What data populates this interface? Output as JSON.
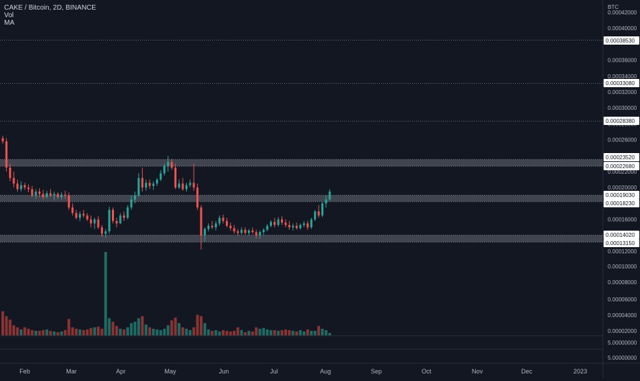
{
  "header": {
    "symbol_line": "CAKE / Bitcoin, 2D, BINANCE",
    "indicator_vol": "Vol",
    "indicator_ma": "MA"
  },
  "colors": {
    "background": "#131722",
    "up": "#26a69a",
    "down": "#ef5350",
    "vol_up": "#1f6b64",
    "vol_down": "#8a3333",
    "zone": "#9598a1",
    "grid_dash": "#9598a1",
    "axis_text": "#b2b5be",
    "label_bg": "#ffffff",
    "label_text": "#131722"
  },
  "chart_data": [
    {
      "type": "candlestick",
      "title": "CAKE / Bitcoin, 2D, BINANCE",
      "price_axis_unit": "BTC",
      "x_ticks": [
        "Feb",
        "Mar",
        "Apr",
        "May",
        "Jun",
        "Jul",
        "Aug",
        "Sep",
        "Oct",
        "Nov",
        "Dec",
        "2023"
      ],
      "y_ticks": [
        "0.00042000",
        "0.00040000",
        "0.00036000",
        "0.00034000",
        "0.00032000",
        "0.00030000",
        "0.00028000",
        "0.00026000",
        "0.00022000",
        "0.00020000",
        "0.00016000",
        "0.00012000"
      ],
      "ylim": [
        0.00011,
        0.00043
      ],
      "level_lines": [
        0.0003853,
        0.0003308,
        0.0002838
      ],
      "zones": [
        {
          "top": 0.0002352,
          "bottom": 0.0002268
        },
        {
          "top": 0.0001903,
          "bottom": 0.0001823
        },
        {
          "top": 0.0001402,
          "bottom": 0.0001315
        }
      ],
      "price_labels": [
        "0.00038530",
        "0.00033080",
        "0.00028380",
        "0.00023520",
        "0.00022680",
        "0.00019030",
        "0.00018230",
        "0.00014020",
        "0.00013150"
      ],
      "ohlc": [
        [
          0.000262,
          0.000265,
          0.000255,
          0.000258
        ],
        [
          0.000258,
          0.000262,
          0.00022,
          0.000225
        ],
        [
          0.000225,
          0.00023,
          0.000208,
          0.000212
        ],
        [
          0.000212,
          0.00022,
          0.0002,
          0.000205
        ],
        [
          0.000205,
          0.00021,
          0.000195,
          0.000198
        ],
        [
          0.000198,
          0.000208,
          0.000195,
          0.000203
        ],
        [
          0.000203,
          0.000206,
          0.000197,
          0.0002
        ],
        [
          0.0002,
          0.000204,
          0.000194,
          0.000198
        ],
        [
          0.000198,
          0.000202,
          0.000188,
          0.00019
        ],
        [
          0.00019,
          0.000198,
          0.000186,
          0.000195
        ],
        [
          0.000195,
          0.000199,
          0.000188,
          0.000192
        ],
        [
          0.000192,
          0.000197,
          0.000185,
          0.000188
        ],
        [
          0.000188,
          0.000196,
          0.000186,
          0.000193
        ],
        [
          0.000193,
          0.000198,
          0.000188,
          0.00019
        ],
        [
          0.00019,
          0.000195,
          0.000184,
          0.000192
        ],
        [
          0.000192,
          0.000194,
          0.000186,
          0.000188
        ],
        [
          0.000188,
          0.000194,
          0.000185,
          0.000191
        ],
        [
          0.000191,
          0.000196,
          0.000186,
          0.00019
        ],
        [
          0.00019,
          0.000194,
          0.000172,
          0.000175
        ],
        [
          0.000175,
          0.00018,
          0.000165,
          0.000168
        ],
        [
          0.000168,
          0.000172,
          0.00016,
          0.000162
        ],
        [
          0.000162,
          0.00017,
          0.000158,
          0.000167
        ],
        [
          0.000167,
          0.000172,
          0.000162,
          0.000165
        ],
        [
          0.000165,
          0.000168,
          0.000158,
          0.00016
        ],
        [
          0.00016,
          0.000165,
          0.00015,
          0.000155
        ],
        [
          0.000155,
          0.000162,
          0.000148,
          0.00016
        ],
        [
          0.00016,
          0.000164,
          0.000148,
          0.00015
        ],
        [
          0.00015,
          0.000153,
          0.000138,
          0.000142
        ],
        [
          0.000142,
          0.000148,
          0.000137,
          0.000145
        ],
        [
          0.000145,
          0.000176,
          0.000142,
          0.000172
        ],
        [
          0.000172,
          0.000175,
          0.000155,
          0.000158
        ],
        [
          0.000158,
          0.000162,
          0.00015,
          0.000155
        ],
        [
          0.000155,
          0.000168,
          0.000154,
          0.000165
        ],
        [
          0.000165,
          0.00017,
          0.000158,
          0.000162
        ],
        [
          0.000162,
          0.000178,
          0.00016,
          0.000175
        ],
        [
          0.000175,
          0.00019,
          0.000172,
          0.000185
        ],
        [
          0.000185,
          0.000195,
          0.00018,
          0.00019
        ],
        [
          0.00019,
          0.000218,
          0.000188,
          0.000212
        ],
        [
          0.000212,
          0.000225,
          0.000195,
          0.0002
        ],
        [
          0.0002,
          0.00021,
          0.000196,
          0.000206
        ],
        [
          0.000206,
          0.00021,
          0.000198,
          0.000202
        ],
        [
          0.000202,
          0.000208,
          0.000197,
          0.000205
        ],
        [
          0.000205,
          0.000212,
          0.000202,
          0.00021
        ],
        [
          0.00021,
          0.000222,
          0.000208,
          0.000218
        ],
        [
          0.000218,
          0.00023,
          0.000215,
          0.000227
        ],
        [
          0.000227,
          0.00024,
          0.00022,
          0.000232
        ],
        [
          0.000232,
          0.000236,
          0.000222,
          0.000225
        ],
        [
          0.000225,
          0.00023,
          0.000198,
          0.0002
        ],
        [
          0.0002,
          0.00021,
          0.000198,
          0.000205
        ],
        [
          0.000205,
          0.000212,
          0.000196,
          0.000198
        ],
        [
          0.000198,
          0.000206,
          0.000195,
          0.000203
        ],
        [
          0.000203,
          0.00021,
          0.0002,
          0.000206
        ],
        [
          0.000206,
          0.00023,
          0.000196,
          0.0002
        ],
        [
          0.0002,
          0.000205,
          0.000172,
          0.000175
        ],
        [
          0.000175,
          0.000178,
          0.000122,
          0.00014
        ],
        [
          0.00014,
          0.00015,
          0.000132,
          0.000148
        ],
        [
          0.000148,
          0.000155,
          0.000145,
          0.000152
        ],
        [
          0.000152,
          0.000158,
          0.000148,
          0.00015
        ],
        [
          0.00015,
          0.000158,
          0.000146,
          0.000155
        ],
        [
          0.000155,
          0.000165,
          0.000152,
          0.000162
        ],
        [
          0.000162,
          0.000166,
          0.000155,
          0.000158
        ],
        [
          0.000158,
          0.000162,
          0.00015,
          0.000152
        ],
        [
          0.000152,
          0.000156,
          0.000146,
          0.000149
        ],
        [
          0.000149,
          0.000153,
          0.000142,
          0.000145
        ],
        [
          0.000145,
          0.000148,
          0.00014,
          0.000143
        ],
        [
          0.000143,
          0.00015,
          0.000141,
          0.000147
        ],
        [
          0.000147,
          0.00015,
          0.000141,
          0.000143
        ],
        [
          0.000143,
          0.000148,
          0.00014,
          0.000146
        ],
        [
          0.000146,
          0.00015,
          0.000142,
          0.000144
        ],
        [
          0.000144,
          0.000147,
          0.000136,
          0.00014
        ],
        [
          0.00014,
          0.000146,
          0.000136,
          0.000144
        ],
        [
          0.000144,
          0.000149,
          0.00014,
          0.000147
        ],
        [
          0.000147,
          0.000154,
          0.000145,
          0.000152
        ],
        [
          0.000152,
          0.000159,
          0.00015,
          0.000157
        ],
        [
          0.000157,
          0.000162,
          0.00015,
          0.000153
        ],
        [
          0.000153,
          0.000163,
          0.000151,
          0.00016
        ],
        [
          0.00016,
          0.000164,
          0.000153,
          0.000156
        ],
        [
          0.000156,
          0.00016,
          0.00015,
          0.000153
        ],
        [
          0.000153,
          0.000158,
          0.000147,
          0.00015
        ],
        [
          0.00015,
          0.000155,
          0.000146,
          0.000152
        ],
        [
          0.000152,
          0.000156,
          0.000147,
          0.000149
        ],
        [
          0.000149,
          0.000155,
          0.000147,
          0.000153
        ],
        [
          0.000153,
          0.000158,
          0.00015,
          0.000155
        ],
        [
          0.000155,
          0.000158,
          0.000147,
          0.00015
        ],
        [
          0.00015,
          0.000162,
          0.000148,
          0.00016
        ],
        [
          0.00016,
          0.000172,
          0.000158,
          0.00017
        ],
        [
          0.00017,
          0.000178,
          0.000162,
          0.000165
        ],
        [
          0.000165,
          0.000182,
          0.000163,
          0.00018
        ],
        [
          0.00018,
          0.00019,
          0.000175,
          0.000185
        ],
        [
          0.000185,
          0.000198,
          0.000183,
          0.000195
        ]
      ],
      "volume_axis_labels": [
        "0.00010000",
        "0.00008000",
        "0.00006000",
        "0.00004000",
        "0.00002000",
        "5.00000000",
        "5.00000000"
      ],
      "volume_ylim": [
        0,
        0.00012
      ],
      "volume": [
        3.5e-05,
        2.8e-05,
        2.3e-05,
        1.5e-05,
        1.2e-05,
        9e-06,
        1.2e-05,
        1e-05,
        8e-06,
        7e-06,
        7e-06,
        8e-06,
        9e-06,
        7e-06,
        6e-06,
        5e-06,
        6e-06,
        8e-06,
        2.4e-05,
        1.2e-05,
        1e-05,
        9e-06,
        8e-06,
        9e-06,
        1.1e-05,
        1.2e-05,
        1.3e-05,
        1e-05,
        0.00012,
        2.5e-05,
        2e-05,
        1.4e-05,
        1e-05,
        9e-06,
        1.2e-05,
        1.8e-05,
        2e-05,
        2.5e-05,
        2.8e-05,
        1.6e-05,
        1.2e-05,
        1e-05,
        9e-06,
        8e-06,
        1e-05,
        1.5e-05,
        2.2e-05,
        2.6e-05,
        1.8e-05,
        1.2e-05,
        1e-05,
        8e-06,
        1.2e-05,
        3e-05,
        2.8e-05,
        1.8e-05,
        9e-06,
        7e-06,
        8e-06,
        6e-06,
        8e-06,
        7e-06,
        6e-06,
        7e-06,
        1.2e-05,
        8e-06,
        5e-06,
        7e-06,
        6e-06,
        1.2e-05,
        1e-05,
        1.1e-05,
        9e-06,
        8e-06,
        8e-06,
        7e-06,
        8e-06,
        9e-06,
        8e-06,
        7e-06,
        6e-06,
        8e-06,
        6e-06,
        9e-06,
        7e-06,
        7e-06,
        1.4e-05,
        1e-05,
        8e-06,
        4e-06
      ]
    }
  ]
}
